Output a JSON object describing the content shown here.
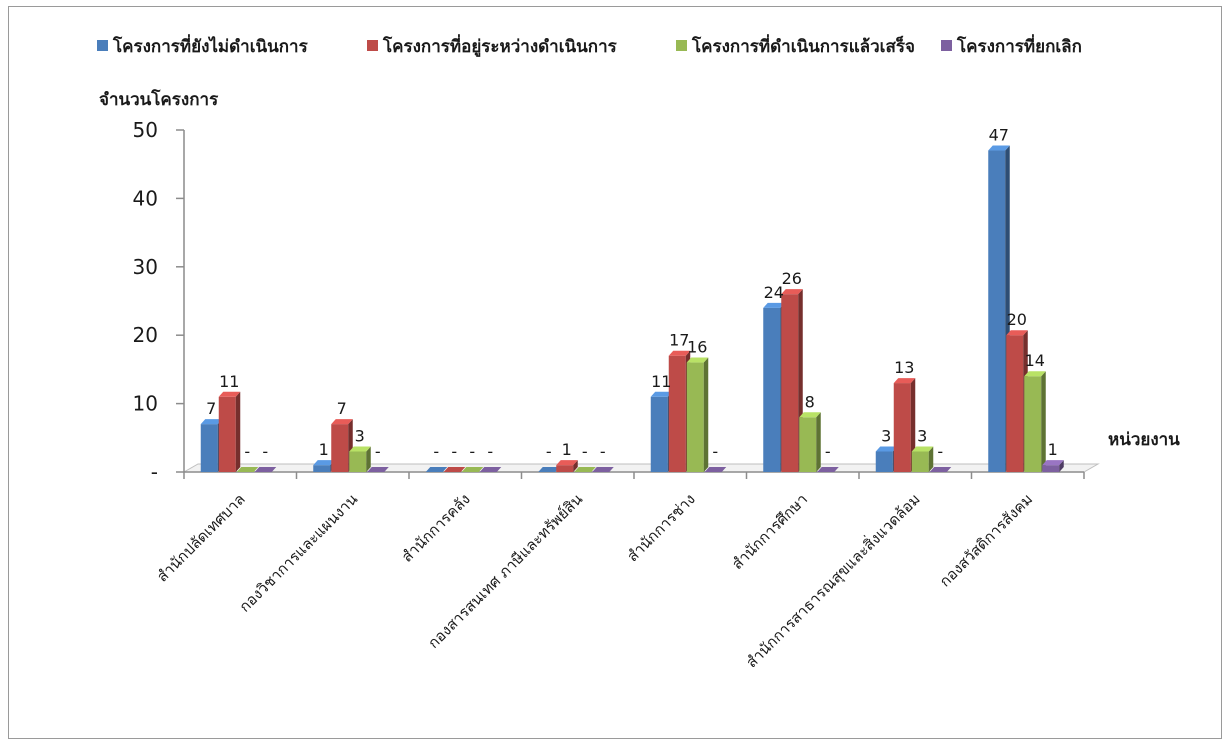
{
  "chart_data": {
    "type": "bar",
    "style": "3d-clustered-column",
    "ylabel": "จำนวนโครงการ",
    "xlabel": "หน่วยงาน",
    "ylim": [
      0,
      50
    ],
    "yticks": [
      0,
      10,
      20,
      30,
      40,
      50
    ],
    "ytick_labels": [
      "-",
      "10",
      "20",
      "30",
      "40",
      "50"
    ],
    "legend_position": "top",
    "categories": [
      "สำนักปลัดเทศบาล",
      "กองวิชาการและแผนงาน",
      "สำนักการคลัง",
      "กองสารสนเทศ ภาษีและทรัพย์สิน",
      "สำนักการช่าง",
      "สำนักการศึกษา",
      "สำนักการสาธารณสุขและสิ่งแวดล้อม",
      "กองสวัสดิการสังคม"
    ],
    "series": [
      {
        "name": "โครงการที่ยังไม่ดำเนินการ",
        "color": "#4a7ebb",
        "values": [
          7,
          1,
          0,
          0,
          11,
          24,
          3,
          47
        ],
        "labels": [
          "7",
          "1",
          "-",
          "-",
          "11",
          "24",
          "3",
          "47"
        ]
      },
      {
        "name": "โครงการที่อยู่ระหว่างดำเนินการ",
        "color": "#be4b48",
        "values": [
          11,
          7,
          0,
          1,
          17,
          26,
          13,
          20
        ],
        "labels": [
          "11",
          "7",
          "-",
          "1",
          "17",
          "26",
          "13",
          "20"
        ]
      },
      {
        "name": "โครงการที่ดำเนินการแล้วเสร็จ",
        "color": "#98b954",
        "values": [
          0,
          3,
          0,
          0,
          16,
          8,
          3,
          14
        ],
        "labels": [
          "-",
          "3",
          "-",
          "-",
          "16",
          "8",
          "3",
          "14"
        ]
      },
      {
        "name": "โครงการที่ยกเลิก",
        "color": "#7d60a0",
        "values": [
          0,
          0,
          0,
          0,
          0,
          0,
          0,
          1
        ],
        "labels": [
          "-",
          "-",
          "-",
          "-",
          "-",
          "-",
          "-",
          "1"
        ]
      }
    ]
  }
}
